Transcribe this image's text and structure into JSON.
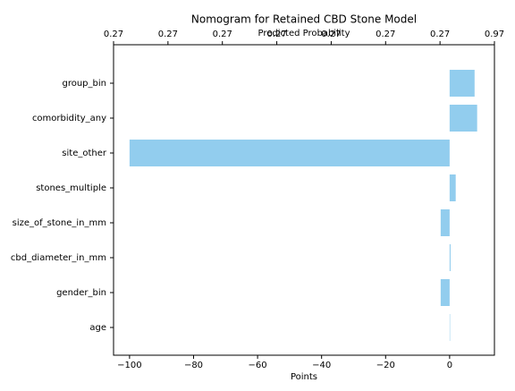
{
  "chart_data": {
    "type": "barh",
    "title": "Nomogram for Retained CBD Stone Model",
    "xlabel": "Points",
    "x2label": "Predicted Probability",
    "categories": [
      "group_bin",
      "comorbidity_any",
      "site_other",
      "stones_multiple",
      "size_of_stone_in_mm",
      "cbd_diameter_in_mm",
      "gender_bin",
      "age"
    ],
    "values": [
      7.8,
      8.6,
      -100,
      1.9,
      -2.8,
      0.3,
      -2.8,
      0.1
    ],
    "color": "#92cdee",
    "xlim": [
      -105,
      14
    ],
    "xticks": [
      {
        "value": -100,
        "label": "−100"
      },
      {
        "value": -80,
        "label": "−80"
      },
      {
        "value": -60,
        "label": "−60"
      },
      {
        "value": -40,
        "label": "−40"
      },
      {
        "value": -20,
        "label": "−20"
      },
      0
    ],
    "x2ticks": [
      {
        "value": -105,
        "label": "0.27"
      },
      {
        "value": -88,
        "label": "0.27"
      },
      {
        "value": -71,
        "label": "0.27"
      },
      {
        "value": -54,
        "label": "0.27"
      },
      {
        "value": -37,
        "label": "0.27"
      },
      {
        "value": -20,
        "label": "0.27"
      },
      {
        "value": -3,
        "label": "0.27"
      },
      {
        "value": 14,
        "label": "0.97"
      }
    ]
  }
}
